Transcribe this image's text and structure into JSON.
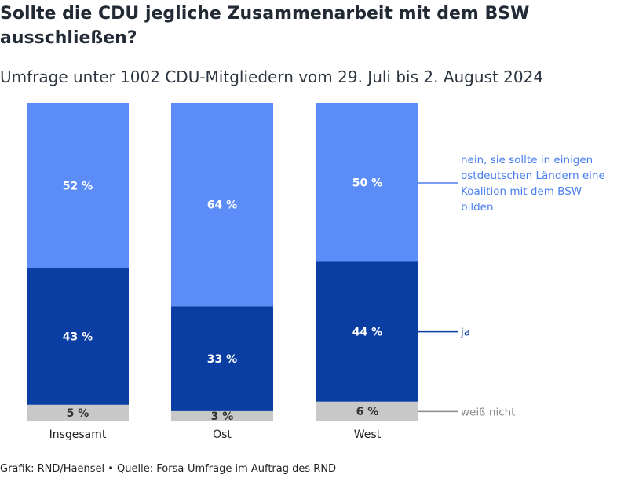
{
  "title": "Sollte die CDU jegliche Zusammenarbeit mit dem BSW ausschließen?",
  "subtitle": "Umfrage unter 1002 CDU-Mitgliedern vom 29. Juli bis 2. August 2024",
  "source": "Grafik: RND/Haensel • Quelle: Forsa-Umfrage im Auftrag des RND",
  "chart_data": {
    "type": "bar",
    "stacked": true,
    "categories": [
      "Insgesamt",
      "Ost",
      "West"
    ],
    "series": [
      {
        "name": "weiß nicht",
        "values": [
          5,
          3,
          6
        ],
        "labels": [
          "5 %",
          "3 %",
          "6 %"
        ],
        "color": "#c8c8c8",
        "label_color": "#333333",
        "legend_color": "#8a8a8a"
      },
      {
        "name": "ja",
        "values": [
          43,
          33,
          44
        ],
        "labels": [
          "43 %",
          "33 %",
          "44 %"
        ],
        "color": "#0a3ea3",
        "label_color": "#ffffff",
        "legend_color": "#0a3ea3"
      },
      {
        "name": "nein, sie sollte in einigen ostdeutschen Ländern eine Koalition mit dem BSW bilden",
        "values": [
          52,
          64,
          50
        ],
        "labels": [
          "52 %",
          "64 %",
          "50 %"
        ],
        "color": "#5b8cf7",
        "label_color": "#ffffff",
        "legend_color": "#4a7ff0"
      }
    ],
    "ylim": [
      0,
      100
    ],
    "legend": "right",
    "grid": false
  }
}
